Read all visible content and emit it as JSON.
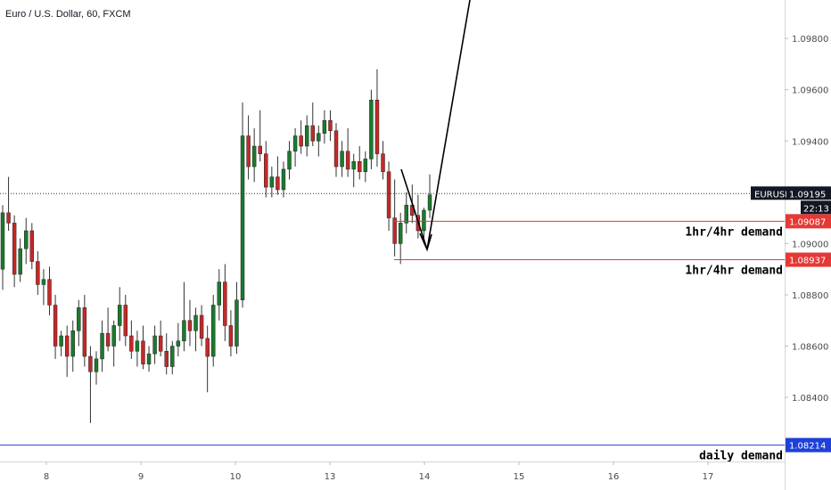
{
  "chart_data": {
    "type": "candlestick",
    "title": "Euro / U.S. Dollar, 60, FXCM",
    "symbol": "EURUSD",
    "last_price": "1.09195",
    "countdown": "22:13",
    "x_tick_labels": [
      "8",
      "9",
      "10",
      "13",
      "14",
      "15",
      "16",
      "17"
    ],
    "y_tick_labels": [
      "1.09800",
      "1.09600",
      "1.09400",
      "1.09200",
      "1.09000",
      "1.08800",
      "1.08600",
      "1.08400"
    ],
    "ylim": [
      1.0815,
      1.0995
    ],
    "grid": false,
    "levels": [
      {
        "label": "1hr/4hr demand",
        "price_tag": "1.09087",
        "value": 1.09087,
        "color": "#e53935"
      },
      {
        "label": "1hr/4hr demand",
        "price_tag": "1.08937",
        "value": 1.08937,
        "color": "#e53935"
      },
      {
        "label": "daily demand",
        "price_tag": "1.08214",
        "value": 1.08214,
        "color": "#1e40d9"
      }
    ],
    "current_price_value": 1.09195,
    "candles": [
      [
        1.089,
        1.0915,
        1.0882,
        1.0912
      ],
      [
        1.0912,
        1.0926,
        1.0905,
        1.0908
      ],
      [
        1.0908,
        1.0911,
        1.0883,
        1.0888
      ],
      [
        1.0888,
        1.0902,
        1.0885,
        1.0898
      ],
      [
        1.0898,
        1.091,
        1.0892,
        1.0905
      ],
      [
        1.0905,
        1.0908,
        1.089,
        1.0893
      ],
      [
        1.0893,
        1.0897,
        1.088,
        1.0884
      ],
      [
        1.0884,
        1.089,
        1.0876,
        1.0886
      ],
      [
        1.0886,
        1.0891,
        1.0872,
        1.0876
      ],
      [
        1.0876,
        1.088,
        1.0855,
        1.086
      ],
      [
        1.086,
        1.0866,
        1.0856,
        1.0864
      ],
      [
        1.0864,
        1.0868,
        1.0848,
        1.0856
      ],
      [
        1.0856,
        1.087,
        1.085,
        1.0866
      ],
      [
        1.0866,
        1.0878,
        1.086,
        1.0875
      ],
      [
        1.0875,
        1.088,
        1.0852,
        1.0856
      ],
      [
        1.0856,
        1.086,
        1.083,
        1.085
      ],
      [
        1.085,
        1.0858,
        1.0845,
        1.0855
      ],
      [
        1.0855,
        1.087,
        1.085,
        1.0865
      ],
      [
        1.0865,
        1.0875,
        1.0858,
        1.086
      ],
      [
        1.086,
        1.087,
        1.0852,
        1.0868
      ],
      [
        1.0868,
        1.0883,
        1.0862,
        1.0876
      ],
      [
        1.0876,
        1.088,
        1.086,
        1.0864
      ],
      [
        1.0864,
        1.087,
        1.0855,
        1.0858
      ],
      [
        1.0858,
        1.0866,
        1.0852,
        1.0862
      ],
      [
        1.0862,
        1.0868,
        1.0851,
        1.0853
      ],
      [
        1.0853,
        1.086,
        1.085,
        1.0857
      ],
      [
        1.0857,
        1.0868,
        1.0853,
        1.0864
      ],
      [
        1.0864,
        1.087,
        1.0856,
        1.0858
      ],
      [
        1.0858,
        1.0865,
        1.0849,
        1.0852
      ],
      [
        1.0852,
        1.0862,
        1.0849,
        1.086
      ],
      [
        1.086,
        1.0869,
        1.0856,
        1.0862
      ],
      [
        1.0862,
        1.0885,
        1.0858,
        1.087
      ],
      [
        1.087,
        1.0878,
        1.086,
        1.0866
      ],
      [
        1.0866,
        1.0875,
        1.0858,
        1.0872
      ],
      [
        1.0872,
        1.0876,
        1.086,
        1.0863
      ],
      [
        1.0863,
        1.0868,
        1.0842,
        1.0856
      ],
      [
        1.0856,
        1.088,
        1.0852,
        1.0876
      ],
      [
        1.0876,
        1.089,
        1.087,
        1.0885
      ],
      [
        1.0885,
        1.0892,
        1.0862,
        1.0868
      ],
      [
        1.0868,
        1.0874,
        1.0856,
        1.086
      ],
      [
        1.086,
        1.0885,
        1.0857,
        1.0878
      ],
      [
        1.0878,
        1.0955,
        1.0875,
        1.0942
      ],
      [
        1.0942,
        1.095,
        1.0925,
        1.093
      ],
      [
        1.093,
        1.0945,
        1.0924,
        1.0938
      ],
      [
        1.0938,
        1.0952,
        1.0932,
        1.0935
      ],
      [
        1.0935,
        1.094,
        1.0918,
        1.0922
      ],
      [
        1.0922,
        1.093,
        1.0918,
        1.0926
      ],
      [
        1.0926,
        1.0934,
        1.0919,
        1.0921
      ],
      [
        1.0921,
        1.0932,
        1.0918,
        1.0929
      ],
      [
        1.0929,
        1.094,
        1.0925,
        1.0936
      ],
      [
        1.0936,
        1.0945,
        1.093,
        1.0942
      ],
      [
        1.0942,
        1.0948,
        1.0935,
        1.0938
      ],
      [
        1.0938,
        1.095,
        1.0934,
        1.0946
      ],
      [
        1.0946,
        1.0955,
        1.0938,
        1.094
      ],
      [
        1.094,
        1.0946,
        1.0934,
        1.0943
      ],
      [
        1.0943,
        1.0952,
        1.0939,
        1.0948
      ],
      [
        1.0948,
        1.0952,
        1.094,
        1.0944
      ],
      [
        1.0944,
        1.0947,
        1.0926,
        1.093
      ],
      [
        1.093,
        1.094,
        1.0926,
        1.0936
      ],
      [
        1.0936,
        1.0945,
        1.0926,
        1.0929
      ],
      [
        1.0929,
        1.0935,
        1.0922,
        1.0932
      ],
      [
        1.0932,
        1.0938,
        1.0925,
        1.0928
      ],
      [
        1.0928,
        1.0936,
        1.0924,
        1.0933
      ],
      [
        1.0933,
        1.096,
        1.0929,
        1.0956
      ],
      [
        1.0956,
        1.0968,
        1.093,
        1.0935
      ],
      [
        1.0935,
        1.094,
        1.0925,
        1.0928
      ],
      [
        1.0928,
        1.0932,
        1.0905,
        1.091
      ],
      [
        1.091,
        1.0925,
        1.0895,
        1.09
      ],
      [
        1.09,
        1.0912,
        1.0892,
        1.0908
      ],
      [
        1.0908,
        1.092,
        1.0904,
        1.0915
      ],
      [
        1.0915,
        1.0923,
        1.0908,
        1.0911
      ],
      [
        1.0911,
        1.0919,
        1.0902,
        1.0905
      ],
      [
        1.0905,
        1.0914,
        1.09,
        1.0913
      ],
      [
        1.0913,
        1.0927,
        1.091,
        1.0919
      ]
    ]
  }
}
